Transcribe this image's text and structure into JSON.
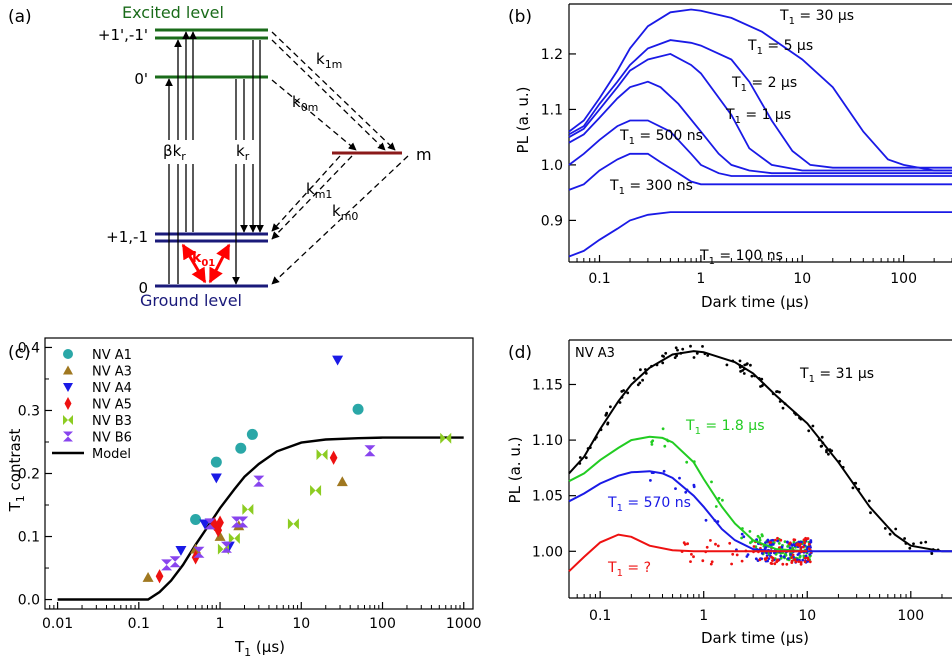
{
  "panels": {
    "a": {
      "label": "(a)",
      "excited_level": "Excited level",
      "ground_level": "Ground level",
      "exc_pm_label": "+1',-1'",
      "exc_0_label": "0'",
      "gnd_pm_label": "+1,-1",
      "gnd_0_label": "0",
      "m_label": "m",
      "beta_kr": "βk",
      "beta_kr_sub": "r",
      "kr": "k",
      "kr_sub": "r",
      "k1m": "k",
      "k1m_sub": "1m",
      "k0m": "k",
      "k0m_sub": "0m",
      "km1": "k",
      "km1_sub": "m1",
      "km0": "k",
      "km0_sub": "m0",
      "k01": "k",
      "k01_sub": "01",
      "colors": {
        "excited": "#1a6b1a",
        "ground": "#1a1a7a",
        "m": "#8b1a1a",
        "k01": "#ff0000"
      }
    },
    "b": {
      "label": "(b)",
      "ylabel": "PL (a. u.)",
      "xlabel": "Dark time (µs)",
      "xticks": [
        "0.1",
        "1",
        "10",
        "100"
      ],
      "yticks": [
        "0.9",
        "1.0",
        "1.1",
        "1.2"
      ],
      "curve_labels": [
        {
          "t": "T",
          "sub": "1",
          "rest": " = 30 µs"
        },
        {
          "t": "T",
          "sub": "1",
          "rest": " = 5 µs"
        },
        {
          "t": "T",
          "sub": "1",
          "rest": " = 2 µs"
        },
        {
          "t": "T",
          "sub": "1",
          "rest": " = 1 µs"
        },
        {
          "t": "T",
          "sub": "1",
          "rest": " = 500 ns"
        },
        {
          "t": "T",
          "sub": "1",
          "rest": " = 300 ns"
        },
        {
          "t": "T",
          "sub": "1",
          "rest": " = 100 ns"
        }
      ]
    },
    "c": {
      "label": "(c)",
      "ylabel": "T",
      "ylabel_sub": "1",
      "ylabel_rest": " contrast",
      "xlabel": "T",
      "xlabel_sub": "1",
      "xlabel_rest": " (µs)",
      "xticks": [
        "0.01",
        "0.1",
        "1",
        "10",
        "100",
        "1000"
      ],
      "yticks": [
        "0.0",
        "0.1",
        "0.2",
        "0.3",
        "0.4"
      ],
      "legend": [
        "NV A1",
        "NV A3",
        "NV A4",
        "NV A5",
        "NV B3",
        "NV B6",
        "Model"
      ]
    },
    "d": {
      "label": "(d)",
      "corner": "NV A3",
      "ylabel": "PL (a. u.)",
      "xlabel": "Dark time (µs)",
      "xticks": [
        "0.1",
        "1",
        "10",
        "100"
      ],
      "yticks": [
        "1.00",
        "1.05",
        "1.10",
        "1.15"
      ],
      "curve_labels": [
        {
          "t": "T",
          "sub": "1",
          "rest": " = 31 µs"
        },
        {
          "t": "T",
          "sub": "1",
          "rest": " = 1.8 µs"
        },
        {
          "t": "T",
          "sub": "1",
          "rest": " = 570 ns"
        },
        {
          "t": "T",
          "sub": "1",
          "rest": " = ?"
        }
      ]
    }
  },
  "chart_data": [
    {
      "type": "line",
      "panel": "b",
      "xlabel": "Dark time (µs)",
      "ylabel": "PL (a. u.)",
      "xscale": "log",
      "xlim": [
        0.05,
        300
      ],
      "ylim": [
        0.825,
        1.29
      ],
      "color": "#1a1ae6",
      "series": [
        {
          "name": "T1 = 30 µs",
          "x": [
            0.05,
            0.07,
            0.1,
            0.15,
            0.2,
            0.3,
            0.5,
            0.8,
            1,
            2,
            4,
            10,
            20,
            40,
            70,
            100,
            200,
            300
          ],
          "y": [
            1.06,
            1.08,
            1.12,
            1.17,
            1.21,
            1.25,
            1.275,
            1.28,
            1.278,
            1.265,
            1.24,
            1.19,
            1.14,
            1.06,
            1.01,
            1.0,
            0.99,
            0.99
          ]
        },
        {
          "name": "T1 = 5 µs",
          "x": [
            0.05,
            0.07,
            0.1,
            0.15,
            0.2,
            0.3,
            0.5,
            0.8,
            1,
            2,
            3,
            5,
            8,
            12,
            20,
            40,
            100,
            300
          ],
          "y": [
            1.055,
            1.07,
            1.11,
            1.15,
            1.18,
            1.21,
            1.225,
            1.22,
            1.215,
            1.19,
            1.15,
            1.08,
            1.025,
            1.0,
            0.995,
            0.995,
            0.995,
            0.995
          ]
        },
        {
          "name": "T1 = 2 µs",
          "x": [
            0.05,
            0.07,
            0.1,
            0.15,
            0.2,
            0.3,
            0.5,
            0.8,
            1,
            2,
            3,
            5,
            10,
            20,
            100,
            300
          ],
          "y": [
            1.05,
            1.065,
            1.1,
            1.14,
            1.17,
            1.19,
            1.2,
            1.18,
            1.165,
            1.09,
            1.03,
            1.0,
            0.99,
            0.99,
            0.99,
            0.99
          ]
        },
        {
          "name": "T1 = 1 µs",
          "x": [
            0.05,
            0.07,
            0.1,
            0.15,
            0.2,
            0.3,
            0.4,
            0.6,
            1,
            1.5,
            2,
            3,
            5,
            10,
            100,
            300
          ],
          "y": [
            1.04,
            1.055,
            1.085,
            1.12,
            1.14,
            1.15,
            1.14,
            1.11,
            1.06,
            1.02,
            1.0,
            0.99,
            0.985,
            0.985,
            0.985,
            0.985
          ]
        },
        {
          "name": "T1 = 500 ns",
          "x": [
            0.05,
            0.07,
            0.1,
            0.15,
            0.2,
            0.3,
            0.5,
            0.8,
            1,
            1.5,
            2,
            3,
            5,
            100,
            300
          ],
          "y": [
            1.0,
            1.02,
            1.045,
            1.07,
            1.08,
            1.08,
            1.06,
            1.02,
            1.0,
            0.985,
            0.98,
            0.98,
            0.98,
            0.98,
            0.98
          ]
        },
        {
          "name": "T1 = 300 ns",
          "x": [
            0.05,
            0.07,
            0.1,
            0.15,
            0.2,
            0.3,
            0.4,
            0.6,
            0.8,
            1,
            1.5,
            2,
            5,
            100,
            300
          ],
          "y": [
            0.955,
            0.965,
            0.99,
            1.01,
            1.02,
            1.02,
            1.005,
            0.985,
            0.97,
            0.965,
            0.965,
            0.965,
            0.965,
            0.965,
            0.965
          ]
        },
        {
          "name": "T1 = 100 ns",
          "x": [
            0.05,
            0.07,
            0.1,
            0.15,
            0.2,
            0.3,
            0.5,
            0.8,
            1,
            2,
            5,
            100,
            300
          ],
          "y": [
            0.835,
            0.845,
            0.865,
            0.885,
            0.9,
            0.91,
            0.915,
            0.915,
            0.915,
            0.915,
            0.915,
            0.915,
            0.915
          ]
        }
      ]
    },
    {
      "type": "scatter",
      "panel": "c",
      "xlabel": "T1 (µs)",
      "ylabel": "T1 contrast",
      "xscale": "log",
      "xlim": [
        0.007,
        1300
      ],
      "ylim": [
        -0.015,
        0.415
      ],
      "series": [
        {
          "name": "NV A1",
          "marker": "circle",
          "color": "#2aa7a7",
          "x": [
            0.5,
            0.9,
            1.8,
            2.5,
            50
          ],
          "y": [
            0.127,
            0.218,
            0.24,
            0.262,
            0.302
          ]
        },
        {
          "name": "NV A3",
          "marker": "triangle-up",
          "color": "#a07820",
          "x": [
            0.13,
            0.5,
            1.0,
            1.7,
            32
          ],
          "y": [
            0.035,
            0.08,
            0.1,
            0.117,
            0.187
          ]
        },
        {
          "name": "NV A4",
          "marker": "triangle-down",
          "color": "#1a1ae6",
          "x": [
            0.33,
            0.65,
            0.9,
            1.3,
            28
          ],
          "y": [
            0.078,
            0.12,
            0.193,
            0.085,
            0.38
          ]
        },
        {
          "name": "NV A5",
          "marker": "diamond",
          "color": "#ee1111",
          "x": [
            0.18,
            0.5,
            0.85,
            0.95,
            1.0,
            25
          ],
          "y": [
            0.037,
            0.067,
            0.12,
            0.11,
            0.122,
            0.225
          ]
        },
        {
          "name": "NV B3",
          "marker": "bowtie-h",
          "color": "#8ccc22",
          "x": [
            1.1,
            1.5,
            2.2,
            8,
            15,
            18,
            600
          ],
          "y": [
            0.08,
            0.097,
            0.143,
            0.12,
            0.173,
            0.23,
            0.256
          ]
        },
        {
          "name": "NV B6",
          "marker": "bowtie-v",
          "color": "#8844ee",
          "x": [
            0.22,
            0.28,
            0.55,
            0.75,
            1.2,
            1.6,
            1.9,
            3,
            70
          ],
          "y": [
            0.055,
            0.06,
            0.075,
            0.12,
            0.083,
            0.123,
            0.123,
            0.188,
            0.236
          ]
        }
      ],
      "model": {
        "name": "Model",
        "color": "#000000",
        "x": [
          0.01,
          0.13,
          0.18,
          0.25,
          0.35,
          0.5,
          0.7,
          1,
          1.5,
          2,
          3,
          5,
          10,
          20,
          50,
          100,
          300,
          1000
        ],
        "y": [
          0.0,
          0.0,
          0.012,
          0.03,
          0.055,
          0.087,
          0.115,
          0.145,
          0.175,
          0.195,
          0.215,
          0.235,
          0.249,
          0.254,
          0.256,
          0.257,
          0.257,
          0.257
        ]
      }
    },
    {
      "type": "scatter",
      "panel": "d",
      "title": "NV A3",
      "xlabel": "Dark time (µs)",
      "ylabel": "PL (a. u.)",
      "xscale": "log",
      "xlim": [
        0.05,
        250
      ],
      "ylim": [
        0.958,
        1.19
      ],
      "series": [
        {
          "name": "T1 = 31 µs",
          "color": "#000000",
          "fit_x": [
            0.05,
            0.07,
            0.1,
            0.15,
            0.2,
            0.3,
            0.5,
            0.8,
            1,
            2,
            3,
            5,
            10,
            20,
            40,
            70,
            100,
            200,
            250
          ],
          "fit_y": [
            1.07,
            1.085,
            1.11,
            1.135,
            1.15,
            1.165,
            1.177,
            1.18,
            1.179,
            1.17,
            1.16,
            1.14,
            1.115,
            1.08,
            1.04,
            1.015,
            1.005,
            1.0,
            1.0
          ]
        },
        {
          "name": "T1 = 1.8 µs",
          "color": "#22cc22",
          "fit_x": [
            0.05,
            0.07,
            0.1,
            0.15,
            0.2,
            0.3,
            0.4,
            0.5,
            0.8,
            1,
            1.5,
            2,
            3,
            5,
            10
          ],
          "fit_y": [
            1.063,
            1.07,
            1.082,
            1.093,
            1.1,
            1.103,
            1.102,
            1.098,
            1.08,
            1.065,
            1.04,
            1.025,
            1.01,
            1.002,
            1.0
          ]
        },
        {
          "name": "T1 = 570 ns",
          "color": "#1a1ae6",
          "fit_x": [
            0.05,
            0.07,
            0.1,
            0.15,
            0.2,
            0.3,
            0.4,
            0.5,
            0.8,
            1,
            1.5,
            2,
            3,
            5,
            10,
            100,
            250
          ],
          "fit_y": [
            1.045,
            1.052,
            1.061,
            1.068,
            1.071,
            1.072,
            1.07,
            1.066,
            1.05,
            1.04,
            1.02,
            1.01,
            1.002,
            1.0,
            1.0,
            1.0,
            1.0
          ]
        },
        {
          "name": "T1 = ?",
          "color": "#ee1111",
          "fit_x": [
            0.05,
            0.07,
            0.1,
            0.15,
            0.2,
            0.3,
            0.5,
            0.8,
            1,
            2,
            5,
            10
          ],
          "fit_y": [
            0.982,
            0.995,
            1.008,
            1.015,
            1.013,
            1.005,
            1.001,
            1.0,
            1.0,
            1.0,
            1.0,
            1.0
          ]
        }
      ]
    }
  ]
}
